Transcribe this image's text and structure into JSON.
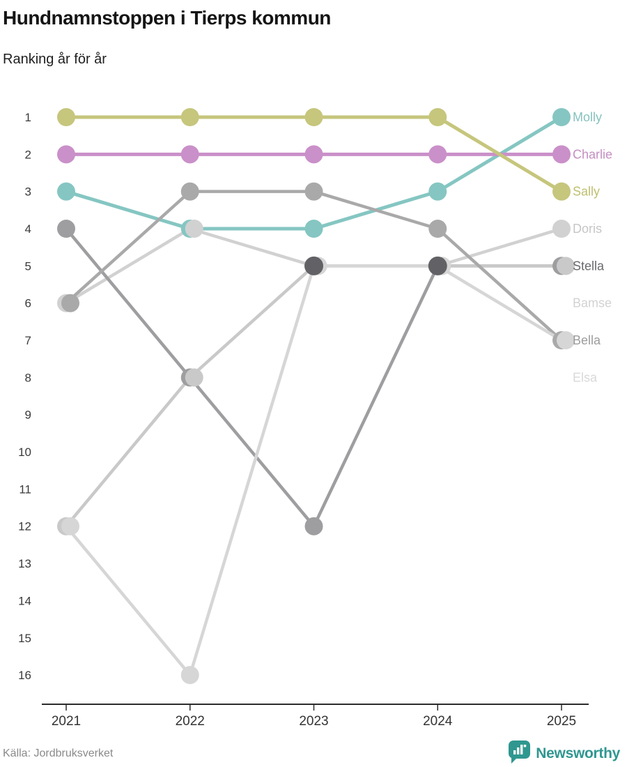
{
  "title": "Hundnamnstoppen i Tierps kommun",
  "subtitle": "Ranking år för år",
  "source": {
    "text": "Källa: Jordbruksverket"
  },
  "brand": {
    "name": "Newsworthy",
    "color": "#2f9790"
  },
  "chart_data": {
    "type": "line",
    "variant": "bump-ranking",
    "x": [
      2021,
      2022,
      2023,
      2024,
      2025
    ],
    "x_tick_labels": [
      "2021",
      "2022",
      "2023",
      "2024",
      "2025"
    ],
    "y_ticks": [
      1,
      2,
      3,
      4,
      5,
      6,
      7,
      8,
      9,
      10,
      11,
      12,
      13,
      14,
      15,
      16
    ],
    "ylim": [
      1,
      16
    ],
    "y_inverted": true,
    "grid": false,
    "legend_position": "right-of-last-point",
    "series": [
      {
        "name": "Molly",
        "color": "#85c6c2",
        "label_color": "#85c2be",
        "label_rank": 1,
        "values": [
          3,
          4,
          4,
          3,
          1
        ]
      },
      {
        "name": "Charlie",
        "color": "#ca90c9",
        "label_color": "#c48fc3",
        "label_rank": 2,
        "values": [
          2,
          2,
          2,
          2,
          2
        ]
      },
      {
        "name": "Sally",
        "color": "#c6c67d",
        "label_color": "#bfbf70",
        "label_rank": 3,
        "values": [
          1,
          1,
          1,
          1,
          3
        ]
      },
      {
        "name": "Doris",
        "color": "#d1d1d1",
        "label_color": "#c6c6c6",
        "label_rank": 4,
        "values": [
          6,
          4,
          5,
          5,
          4
        ]
      },
      {
        "name": "Stella",
        "color": "#9e9ea1",
        "label_color": "#69696d",
        "label_rank": 5,
        "values": [
          4,
          8,
          12,
          5,
          5
        ]
      },
      {
        "name": "Bamse",
        "color": "#c9c9c9",
        "label_color": "#d2d2d2",
        "label_rank": 6,
        "values": [
          12,
          8,
          5,
          5,
          5
        ]
      },
      {
        "name": "Bella",
        "color": "#a9a9a9",
        "label_color": "#9c9c9c",
        "label_rank": 7,
        "values": [
          6,
          3,
          3,
          4,
          7
        ]
      },
      {
        "name": "Elsa",
        "color": "#d6d6d6",
        "label_color": "#d9d9d9",
        "label_rank": 8,
        "values": [
          12,
          16,
          5,
          5,
          7
        ]
      }
    ],
    "tie_overlay_dots": [
      {
        "year": 2023,
        "rank": 5
      },
      {
        "year": 2024,
        "rank": 5
      }
    ],
    "tie_overlay_color": "#626266"
  }
}
